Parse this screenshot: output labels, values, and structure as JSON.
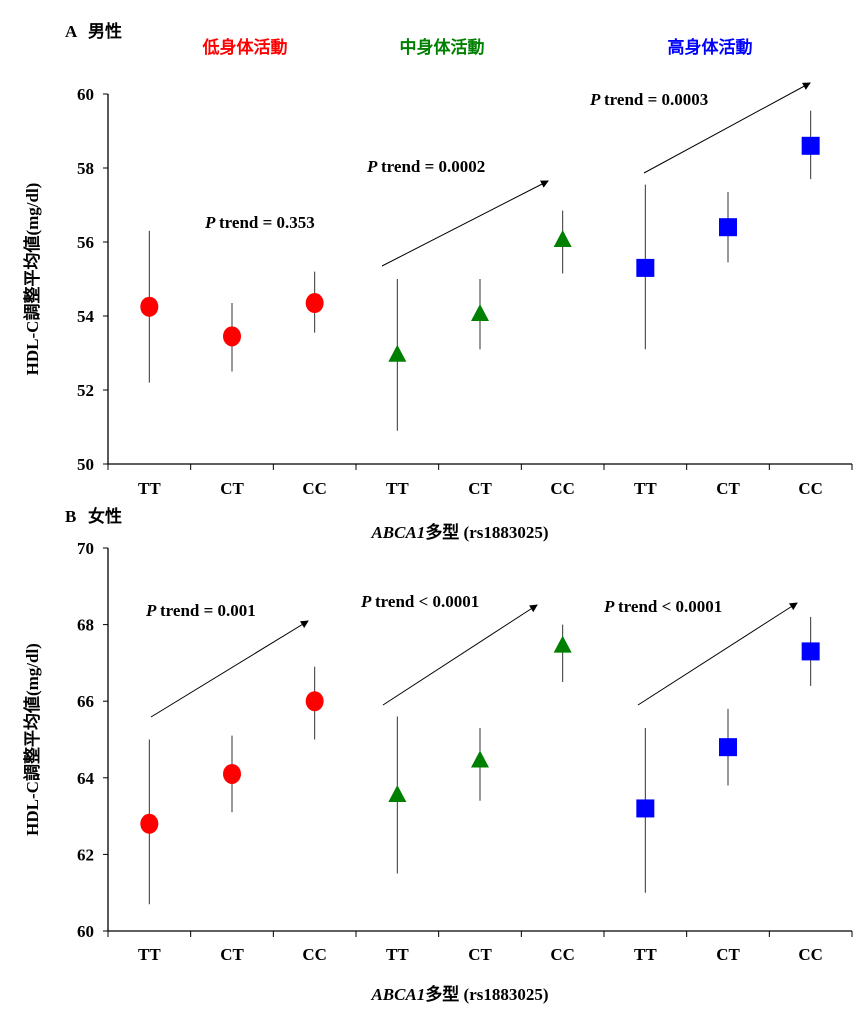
{
  "colors": {
    "low": "#ff0000",
    "mid": "#008000",
    "high": "#0000ff",
    "axis": "#000000"
  },
  "group_labels": [
    "低身体活動",
    "中身体活動",
    "高身体活動"
  ],
  "chart_data": [
    {
      "type": "scatter",
      "panel": "A",
      "title": "男性",
      "xlabel_italic": "ABCA1",
      "xlabel_rest": "多型 (rs1883025)",
      "ylabel": "HDL-C調整平均値(mg/dl)",
      "ylim": [
        50,
        60
      ],
      "yticks": [
        50,
        52,
        54,
        56,
        58,
        60
      ],
      "categories": [
        "TT",
        "CT",
        "CC",
        "TT",
        "CT",
        "CC",
        "TT",
        "CT",
        "CC"
      ],
      "series": [
        {
          "group": "低身体活動",
          "marker": "circle",
          "values": [
            54.25,
            53.45,
            54.35
          ],
          "lower": [
            52.2,
            52.5,
            53.55
          ],
          "upper": [
            56.3,
            54.35,
            55.2
          ],
          "trend_label": "trend = 0.353",
          "arrow": false
        },
        {
          "group": "中身体活動",
          "marker": "triangle",
          "values": [
            52.9,
            54.0,
            56.0
          ],
          "lower": [
            50.9,
            53.1,
            55.15
          ],
          "upper": [
            55.0,
            55.0,
            56.85
          ],
          "trend_label": "trend = 0.0002",
          "arrow": true
        },
        {
          "group": "高身体活動",
          "marker": "square",
          "values": [
            55.3,
            56.4,
            58.6
          ],
          "lower": [
            53.1,
            55.45,
            57.7
          ],
          "upper": [
            57.55,
            57.35,
            59.55
          ],
          "trend_label": "trend = 0.0003",
          "arrow": true
        }
      ],
      "p_label": "P"
    },
    {
      "type": "scatter",
      "panel": "B",
      "title": "女性",
      "xlabel_italic": "ABCA1",
      "xlabel_rest": "多型 (rs1883025)",
      "ylabel": "HDL-C調整平均値(mg/dl)",
      "ylim": [
        60,
        70
      ],
      "yticks": [
        60,
        62,
        64,
        66,
        68,
        70
      ],
      "categories": [
        "TT",
        "CT",
        "CC",
        "TT",
        "CT",
        "CC",
        "TT",
        "CT",
        "CC"
      ],
      "series": [
        {
          "group": "低身体活動",
          "marker": "circle",
          "values": [
            62.8,
            64.1,
            66.0
          ],
          "lower": [
            60.7,
            63.1,
            65.0
          ],
          "upper": [
            65.0,
            65.1,
            66.9
          ],
          "trend_label": "trend = 0.001",
          "arrow": true
        },
        {
          "group": "中身体活動",
          "marker": "triangle",
          "values": [
            63.5,
            64.4,
            67.4
          ],
          "lower": [
            61.5,
            63.4,
            66.5
          ],
          "upper": [
            65.6,
            65.3,
            68.0
          ],
          "trend_label": "trend < 0.0001",
          "arrow": true
        },
        {
          "group": "高身体活動",
          "marker": "square",
          "values": [
            63.2,
            64.8,
            67.3
          ],
          "lower": [
            61.0,
            63.8,
            66.4
          ],
          "upper": [
            65.3,
            65.8,
            68.2
          ],
          "trend_label": "trend < 0.0001",
          "arrow": true
        }
      ],
      "p_label": "P"
    }
  ]
}
